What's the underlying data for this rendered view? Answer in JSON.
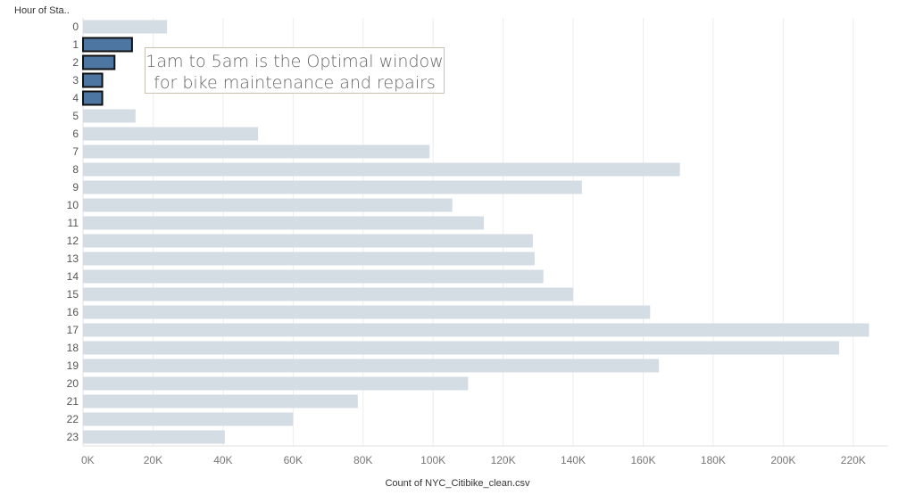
{
  "chart_data": {
    "type": "bar",
    "orientation": "horizontal",
    "y_header": "Hour of Sta..",
    "xlabel": "Count of NYC_Citibike_clean.csv",
    "categories": [
      "0",
      "1",
      "2",
      "3",
      "4",
      "5",
      "6",
      "7",
      "8",
      "9",
      "10",
      "11",
      "12",
      "13",
      "14",
      "15",
      "16",
      "17",
      "18",
      "19",
      "20",
      "21",
      "22",
      "23"
    ],
    "values": [
      24000,
      14000,
      9000,
      5500,
      5500,
      15000,
      50000,
      99000,
      170500,
      142500,
      105500,
      114500,
      128500,
      129000,
      131500,
      140000,
      162000,
      224500,
      216000,
      164500,
      110000,
      78500,
      60000,
      40500
    ],
    "highlighted": [
      "1",
      "2",
      "3",
      "4"
    ],
    "xlim": [
      0,
      230000
    ],
    "x_ticks": [
      0,
      20000,
      40000,
      60000,
      80000,
      100000,
      120000,
      140000,
      160000,
      180000,
      200000,
      220000
    ],
    "x_tick_labels": [
      "0K",
      "20K",
      "40K",
      "60K",
      "80K",
      "100K",
      "120K",
      "140K",
      "160K",
      "180K",
      "200K",
      "220K"
    ],
    "grid": true,
    "colors": {
      "default_bar": "#d5dde4",
      "highlight_bar": "#4e76a3",
      "highlight_border": "#111111",
      "grid": "#ededed",
      "axis_text": "#777777"
    },
    "annotation": {
      "line1": "1am to 5am is the Optimal window",
      "line2": "for bike maintenance and repairs"
    }
  }
}
